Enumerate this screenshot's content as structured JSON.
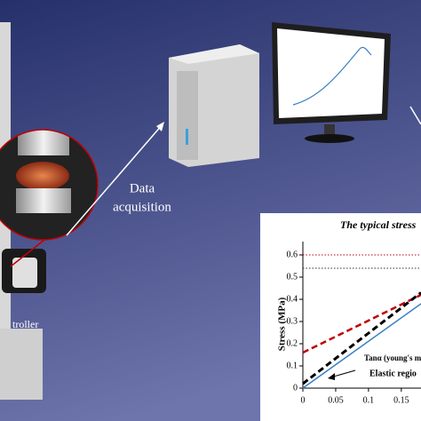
{
  "labels": {
    "data_acquisition": [
      "Data",
      "acquisition"
    ],
    "controller": "troller"
  },
  "chart_data": {
    "type": "line",
    "title": "The typical stress",
    "ylabel": "Stress (MPa)",
    "xlim": [
      0,
      0.18
    ],
    "ylim": [
      0,
      0.66
    ],
    "xticks": [
      0,
      0.05,
      0.1,
      0.15
    ],
    "yticks": [
      0,
      0.1,
      0.2,
      0.3,
      0.4,
      0.5,
      0.6
    ],
    "series": [
      {
        "color": "#c00000",
        "dash": "dotted",
        "x": [
          0,
          0.18
        ],
        "values": [
          0.6,
          0.6
        ]
      },
      {
        "color": "#333333",
        "dash": "dotted",
        "x": [
          0,
          0.18
        ],
        "values": [
          0.54,
          0.54
        ]
      },
      {
        "color": "#c00000",
        "dash": "dashed",
        "x": [
          0,
          0.18
        ],
        "values": [
          0.16,
          0.42
        ]
      },
      {
        "color": "#000000",
        "dash": "dashed",
        "x": [
          0,
          0.18
        ],
        "values": [
          0.02,
          0.43
        ]
      },
      {
        "color": "#3a7fc4",
        "dash": "solid",
        "x": [
          0,
          0.18
        ],
        "values": [
          0,
          0.38
        ]
      }
    ],
    "annotations": [
      "Tanα (young's m",
      "Elastic regio"
    ]
  }
}
